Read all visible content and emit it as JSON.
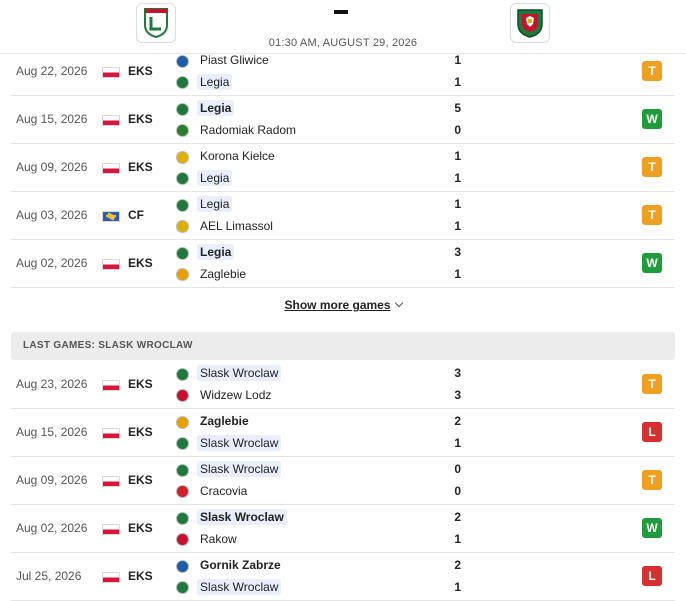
{
  "match": {
    "datetime": "01:30 AM, AUGUST 29, 2026",
    "home_logo_icon": "legia-crest-icon",
    "away_logo_icon": "slask-crest-icon"
  },
  "colors": {
    "draw": "#f0a020",
    "win": "#1f9d3a",
    "loss": "#d62f2f",
    "highlight": "#e8eefb"
  },
  "legia_games": [
    {
      "date": "Aug 22, 2026",
      "flag": "pl",
      "competition": "EKS",
      "team1": {
        "name": "Piast Gliwice",
        "crest": "#1b5fa8",
        "score": "1",
        "highlight": false,
        "winner": false
      },
      "team2": {
        "name": "Legia",
        "crest": "#1e7a3c",
        "score": "1",
        "highlight": true,
        "winner": false
      },
      "result": "T"
    },
    {
      "date": "Aug 15, 2026",
      "flag": "pl",
      "competition": "EKS",
      "team1": {
        "name": "Legia",
        "crest": "#1e7a3c",
        "score": "5",
        "highlight": true,
        "winner": true
      },
      "team2": {
        "name": "Radomiak Radom",
        "crest": "#2a7d2a",
        "score": "0",
        "highlight": false,
        "winner": false
      },
      "result": "W"
    },
    {
      "date": "Aug 09, 2026",
      "flag": "pl",
      "competition": "EKS",
      "team1": {
        "name": "Korona Kielce",
        "crest": "#e0b000",
        "score": "1",
        "highlight": false,
        "winner": false
      },
      "team2": {
        "name": "Legia",
        "crest": "#1e7a3c",
        "score": "1",
        "highlight": true,
        "winner": false
      },
      "result": "T"
    },
    {
      "date": "Aug 03, 2026",
      "flag": "cf",
      "competition": "CF",
      "team1": {
        "name": "Legia",
        "crest": "#1e7a3c",
        "score": "1",
        "highlight": true,
        "winner": false
      },
      "team2": {
        "name": "AEL Limassol",
        "crest": "#d9b000",
        "score": "1",
        "highlight": false,
        "winner": false
      },
      "result": "T"
    },
    {
      "date": "Aug 02, 2026",
      "flag": "pl",
      "competition": "EKS",
      "team1": {
        "name": "Legia",
        "crest": "#1e7a3c",
        "score": "3",
        "highlight": true,
        "winner": true
      },
      "team2": {
        "name": "Zaglebie",
        "crest": "#e8a000",
        "score": "1",
        "highlight": false,
        "winner": false
      },
      "result": "W"
    }
  ],
  "show_more_label": "Show more games",
  "slask_section_title": "LAST GAMES: SLASK WROCLAW",
  "slask_games": [
    {
      "date": "Aug 23, 2026",
      "flag": "pl",
      "competition": "EKS",
      "team1": {
        "name": "Slask Wroclaw",
        "crest": "#1e7a3c",
        "score": "3",
        "highlight": true,
        "winner": false
      },
      "team2": {
        "name": "Widzew Lodz",
        "crest": "#c8102e",
        "score": "3",
        "highlight": false,
        "winner": false
      },
      "result": "T"
    },
    {
      "date": "Aug 15, 2026",
      "flag": "pl",
      "competition": "EKS",
      "team1": {
        "name": "Zaglebie",
        "crest": "#e8a000",
        "score": "2",
        "highlight": false,
        "winner": true
      },
      "team2": {
        "name": "Slask Wroclaw",
        "crest": "#1e7a3c",
        "score": "1",
        "highlight": true,
        "winner": false
      },
      "result": "L"
    },
    {
      "date": "Aug 09, 2026",
      "flag": "pl",
      "competition": "EKS",
      "team1": {
        "name": "Slask Wroclaw",
        "crest": "#1e7a3c",
        "score": "0",
        "highlight": true,
        "winner": false
      },
      "team2": {
        "name": "Cracovia",
        "crest": "#d01e2e",
        "score": "0",
        "highlight": false,
        "winner": false
      },
      "result": "T"
    },
    {
      "date": "Aug 02, 2026",
      "flag": "pl",
      "competition": "EKS",
      "team1": {
        "name": "Slask Wroclaw",
        "crest": "#1e7a3c",
        "score": "2",
        "highlight": true,
        "winner": true
      },
      "team2": {
        "name": "Rakow",
        "crest": "#c8102e",
        "score": "1",
        "highlight": false,
        "winner": false
      },
      "result": "W"
    },
    {
      "date": "Jul 25, 2026",
      "flag": "pl",
      "competition": "EKS",
      "team1": {
        "name": "Gornik Zabrze",
        "crest": "#1b5fa8",
        "score": "2",
        "highlight": false,
        "winner": true
      },
      "team2": {
        "name": "Slask Wroclaw",
        "crest": "#1e7a3c",
        "score": "1",
        "highlight": true,
        "winner": false
      },
      "result": "L"
    }
  ]
}
